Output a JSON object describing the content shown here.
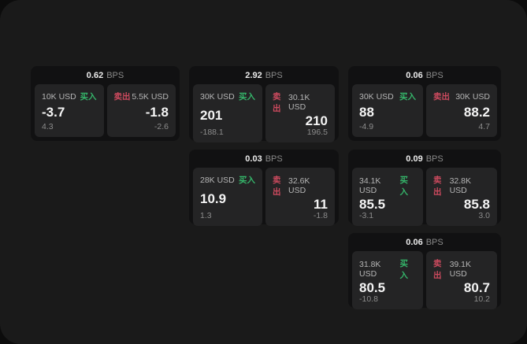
{
  "labels": {
    "bps_unit": "BPS",
    "buy": "买入",
    "sell": "卖出"
  },
  "colors": {
    "page_background": "#0c0c0c",
    "surface": "#1a1a1a",
    "card": "#111112",
    "panel": "#242425",
    "buy_green": "#35b56a",
    "sell_red": "#cc4a5e"
  },
  "cards": [
    {
      "bps": "0.62",
      "buy": {
        "amount": "10K USD",
        "price": "-3.7",
        "change": "4.3"
      },
      "sell": {
        "amount": "5.5K USD",
        "price": "-1.8",
        "change": "-2.6"
      }
    },
    {
      "bps": "2.92",
      "buy": {
        "amount": "30K USD",
        "price": "201",
        "change": "-188.1"
      },
      "sell": {
        "amount": "30.1K USD",
        "price": "210",
        "change": "196.5"
      }
    },
    {
      "bps": "0.06",
      "buy": {
        "amount": "30K USD",
        "price": "88",
        "change": "-4.9"
      },
      "sell": {
        "amount": "30K USD",
        "price": "88.2",
        "change": "4.7"
      }
    },
    {
      "bps": "0.03",
      "buy": {
        "amount": "28K USD",
        "price": "10.9",
        "change": "1.3"
      },
      "sell": {
        "amount": "32.6K USD",
        "price": "11",
        "change": "-1.8"
      }
    },
    {
      "bps": "0.09",
      "buy": {
        "amount": "34.1K USD",
        "price": "85.5",
        "change": "-3.1"
      },
      "sell": {
        "amount": "32.8K USD",
        "price": "85.8",
        "change": "3.0"
      }
    },
    {
      "bps": "0.06",
      "buy": {
        "amount": "31.8K USD",
        "price": "80.5",
        "change": "-10.8"
      },
      "sell": {
        "amount": "39.1K USD",
        "price": "80.7",
        "change": "10.2"
      }
    }
  ]
}
